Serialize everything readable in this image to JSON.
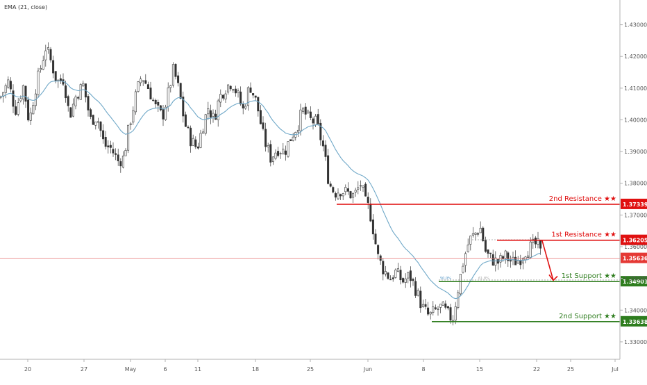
{
  "indicator": {
    "label": "EMA (21, close)"
  },
  "colors": {
    "candle": "#333333",
    "ema": "#6fa8c8",
    "resistance": "#e01010",
    "support": "#2e7d1e",
    "price_line": "#e57373",
    "price_tag": "#e53935",
    "fib": "#9e9e9e",
    "axis_text": "#555555"
  },
  "chart_data": {
    "type": "candlestick",
    "y_axis": {
      "range": [
        1.3245,
        1.4378
      ],
      "ticks": [
        "1.33000",
        "1.34000",
        "1.35000",
        "1.36000",
        "1.37000",
        "1.38000",
        "1.39000",
        "1.40000",
        "1.41000",
        "1.42000",
        "1.43000"
      ]
    },
    "x_axis": {
      "ticks": [
        "20",
        "27",
        "May",
        "6",
        "11",
        "18",
        "25",
        "Jun",
        "8",
        "15",
        "22",
        "25",
        "Jul"
      ]
    },
    "levels": [
      {
        "name": "2nd Resistance",
        "stars": "★★",
        "value": "1.37339",
        "kind": "resistance"
      },
      {
        "name": "1st Resistance",
        "stars": "★★",
        "value": "1.36205",
        "kind": "resistance"
      },
      {
        "name": "1st Support",
        "stars": "★★",
        "value": "1.34901",
        "kind": "support"
      },
      {
        "name": "2nd Support",
        "stars": "★★",
        "value": "1.33638",
        "kind": "support"
      }
    ],
    "current_price": "1.35636",
    "fib_labels": [
      "50.0%",
      "61.8%"
    ],
    "price_path": [
      [
        0,
        1.407
      ],
      [
        12,
        1.412
      ],
      [
        22,
        1.403
      ],
      [
        34,
        1.411
      ],
      [
        42,
        1.399
      ],
      [
        50,
        1.409
      ],
      [
        58,
        1.416
      ],
      [
        66,
        1.423
      ],
      [
        74,
        1.418
      ],
      [
        82,
        1.412
      ],
      [
        92,
        1.413
      ],
      [
        100,
        1.401
      ],
      [
        110,
        1.408
      ],
      [
        120,
        1.411
      ],
      [
        130,
        1.4
      ],
      [
        140,
        1.401
      ],
      [
        150,
        1.392
      ],
      [
        160,
        1.391
      ],
      [
        170,
        1.387
      ],
      [
        178,
        1.388
      ],
      [
        186,
        1.398
      ],
      [
        196,
        1.408
      ],
      [
        204,
        1.414
      ],
      [
        214,
        1.41
      ],
      [
        224,
        1.404
      ],
      [
        234,
        1.401
      ],
      [
        242,
        1.408
      ],
      [
        250,
        1.416
      ],
      [
        258,
        1.409
      ],
      [
        266,
        1.399
      ],
      [
        274,
        1.394
      ],
      [
        284,
        1.391
      ],
      [
        292,
        1.398
      ],
      [
        300,
        1.404
      ],
      [
        308,
        1.4
      ],
      [
        316,
        1.407
      ],
      [
        324,
        1.41
      ],
      [
        334,
        1.412
      ],
      [
        342,
        1.408
      ],
      [
        350,
        1.403
      ],
      [
        360,
        1.411
      ],
      [
        370,
        1.405
      ],
      [
        380,
        1.394
      ],
      [
        390,
        1.388
      ],
      [
        400,
        1.391
      ],
      [
        410,
        1.39
      ],
      [
        420,
        1.395
      ],
      [
        428,
        1.398
      ],
      [
        436,
        1.403
      ],
      [
        446,
        1.4
      ],
      [
        456,
        1.399
      ],
      [
        466,
        1.391
      ],
      [
        474,
        1.38
      ],
      [
        482,
        1.377
      ],
      [
        490,
        1.378
      ],
      [
        500,
        1.377
      ],
      [
        510,
        1.376
      ],
      [
        520,
        1.38
      ],
      [
        526,
        1.374
      ],
      [
        532,
        1.372
      ],
      [
        538,
        1.365
      ],
      [
        544,
        1.357
      ],
      [
        552,
        1.353
      ],
      [
        562,
        1.35
      ],
      [
        570,
        1.352
      ],
      [
        580,
        1.349
      ],
      [
        590,
        1.351
      ],
      [
        600,
        1.346
      ],
      [
        608,
        1.341
      ],
      [
        618,
        1.338
      ],
      [
        628,
        1.34
      ],
      [
        636,
        1.341
      ],
      [
        644,
        1.339
      ],
      [
        652,
        1.337
      ],
      [
        660,
        1.347
      ],
      [
        668,
        1.356
      ],
      [
        676,
        1.362
      ],
      [
        684,
        1.364
      ],
      [
        692,
        1.366
      ],
      [
        700,
        1.358
      ],
      [
        708,
        1.356
      ],
      [
        718,
        1.355
      ],
      [
        728,
        1.357
      ],
      [
        738,
        1.355
      ],
      [
        748,
        1.356
      ],
      [
        758,
        1.359
      ],
      [
        766,
        1.36
      ],
      [
        774,
        1.361
      ],
      [
        780,
        1.357
      ]
    ]
  }
}
